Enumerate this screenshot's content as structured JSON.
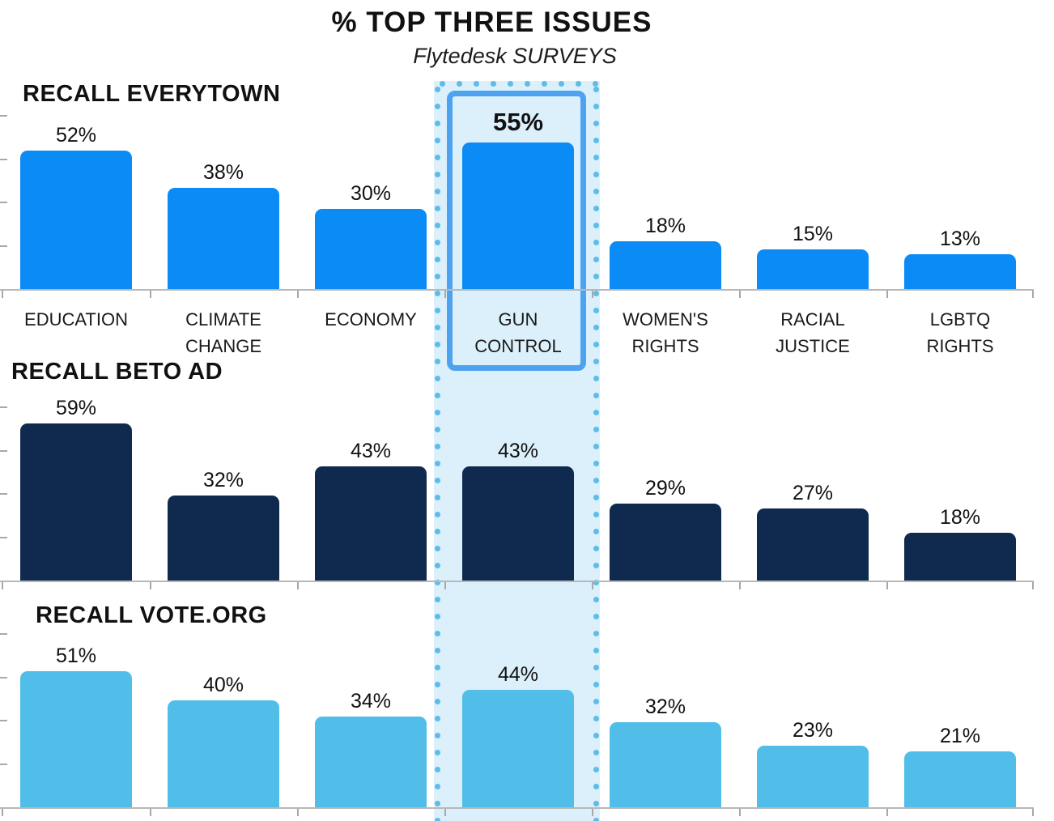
{
  "header": {
    "title": "% TOP THREE ISSUES",
    "subtitle": "Flytedesk SURVEYS"
  },
  "chart_data": {
    "type": "bar",
    "title": "% TOP THREE ISSUES",
    "subtitle": "Flytedesk SURVEYS",
    "unit": "%",
    "categories": [
      "EDUCATION",
      "CLIMATE\nCHANGE",
      "ECONOMY",
      "GUN\nCONTROL",
      "WOMEN'S\nRIGHTS",
      "RACIAL\nJUSTICE",
      "LGBTQ\nRIGHTS"
    ],
    "series": [
      {
        "name": "RECALL EVERYTOWN",
        "color": "#0A8BF5",
        "values": [
          52,
          38,
          30,
          55,
          18,
          15,
          13
        ]
      },
      {
        "name": "RECALL BETO AD",
        "color": "#0F2A4E",
        "values": [
          59,
          32,
          43,
          43,
          29,
          27,
          18
        ]
      },
      {
        "name": "RECALL VOTE.ORG",
        "color": "#50BEE9",
        "values": [
          51,
          40,
          34,
          44,
          32,
          23,
          21
        ]
      }
    ],
    "highlight": {
      "category": "GUN CONTROL",
      "category_index": 3,
      "emphasized_series": "RECALL EVERYTOWN",
      "emphasized_value_label": "55%",
      "band_fill_color": "#DCF0FB",
      "band_dot_color": "#5FBCE8",
      "box_border_color": "#4EA3F0"
    },
    "y_axis": {
      "labels_visible": false,
      "ticks_per_panel": 4,
      "ylim": [
        0,
        65
      ]
    },
    "grid": false,
    "legend_position": "none",
    "category_labels_shown_under_panel": "RECALL EVERYTOWN"
  }
}
